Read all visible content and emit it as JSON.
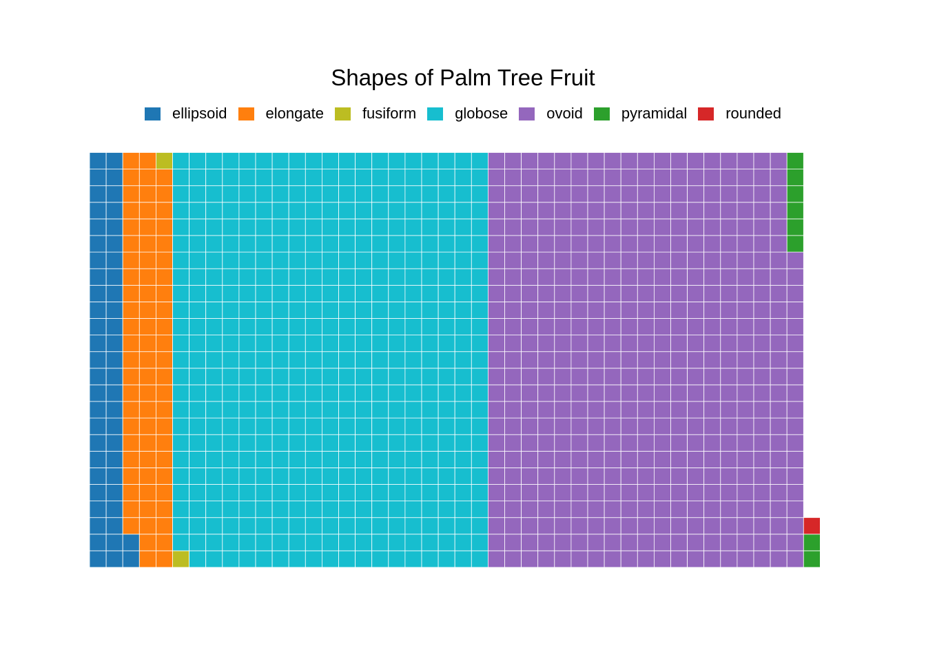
{
  "chart_data": {
    "type": "waffle",
    "title": "Shapes of Palm Tree Fruit",
    "legend_position": "top",
    "grid": false,
    "rows": 25,
    "fill_order": "column-major, bottom-to-top, left-to-right",
    "categories": [
      "ellipsoid",
      "elongate",
      "fusiform",
      "globose",
      "ovoid",
      "pyramidal",
      "rounded"
    ],
    "values": [
      52,
      72,
      2,
      474,
      469,
      8,
      1
    ],
    "colors": [
      "#1f77b4",
      "#ff7f0e",
      "#bcbd22",
      "#17becf",
      "#9467bd",
      "#2ca02c",
      "#d62728"
    ]
  }
}
